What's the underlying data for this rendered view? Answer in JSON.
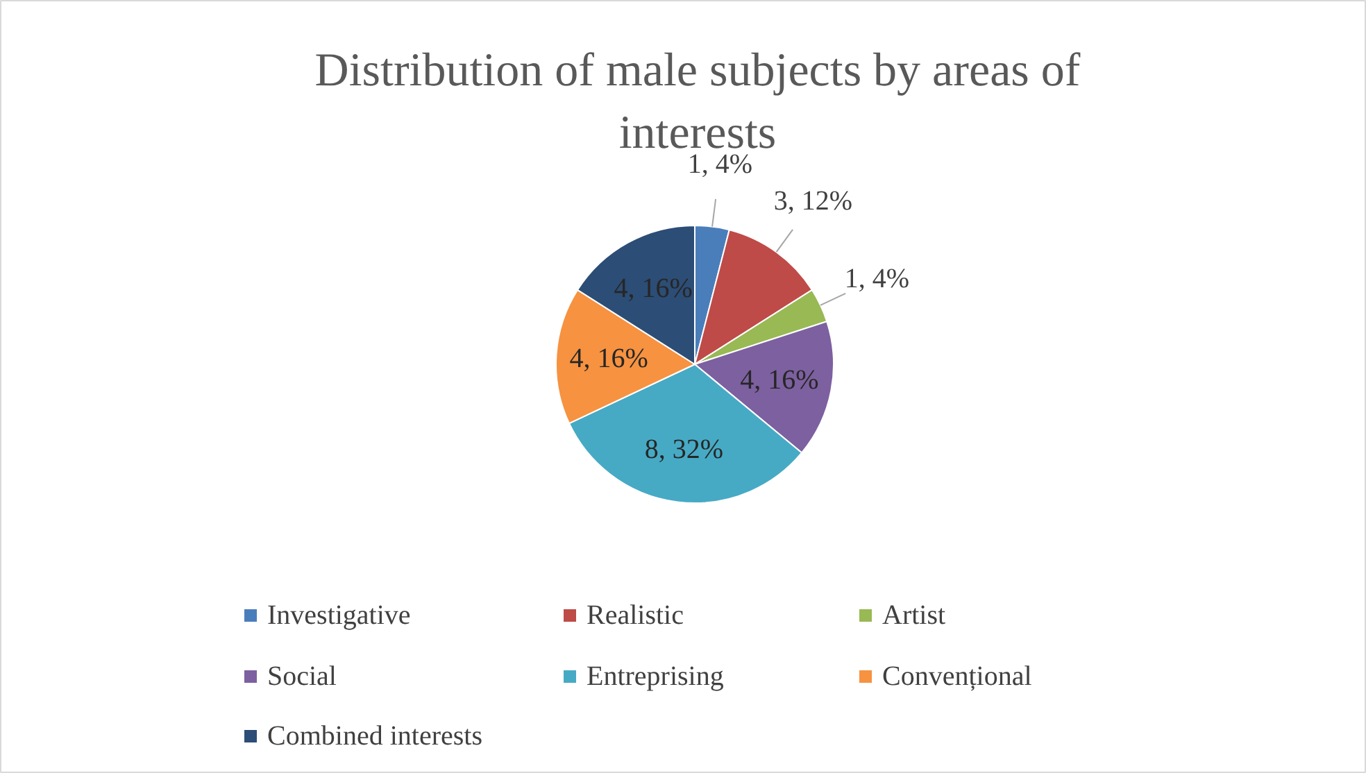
{
  "chart_data": {
    "type": "pie",
    "title": "Distribution of male subjects by areas of interests",
    "categories": [
      "Investigative",
      "Realistic",
      "Artist",
      "Social",
      "Entreprising",
      "Convențional",
      "Combined interests"
    ],
    "values": [
      1,
      3,
      1,
      4,
      8,
      4,
      4
    ],
    "colors": [
      "#4a7ebb",
      "#be4b48",
      "#98b954",
      "#7d60a0",
      "#46aac5",
      "#f69240",
      "#2c4d75"
    ],
    "value_labels": [
      "1, 4%",
      "3, 12%",
      "1, 4%",
      "4, 16%",
      "8, 32%",
      "4, 16%",
      "4, 16%"
    ],
    "legend": "bottom"
  }
}
